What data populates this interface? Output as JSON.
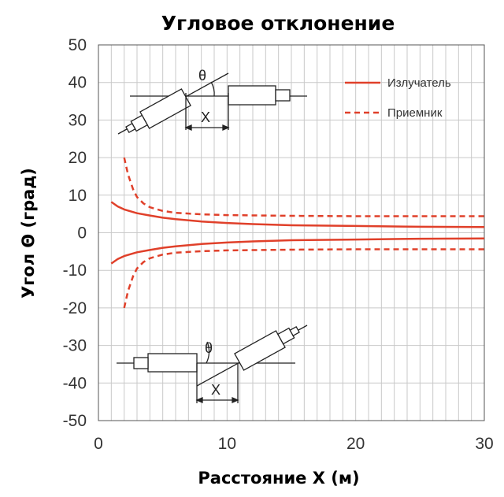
{
  "chart_data": {
    "type": "line",
    "title": "Угловое отклонение",
    "xlabel": "Расстояние X (м)",
    "ylabel": "Угол Θ (град)",
    "xlim": [
      0,
      30
    ],
    "ylim": [
      -50,
      50
    ],
    "xticks": [
      0,
      10,
      20,
      30
    ],
    "yticks": [
      50,
      40,
      30,
      20,
      10,
      0,
      -10,
      -20,
      -30,
      -40,
      -50
    ],
    "grid": true,
    "legend_position": "top-right",
    "colors": {
      "series": "#e0402a",
      "grid": "#c9c9c9",
      "text": "#333333"
    },
    "series": [
      {
        "name": "Излучатель",
        "style": "solid",
        "x": [
          1,
          1.5,
          2,
          3,
          4,
          5,
          6,
          8,
          10,
          12,
          15,
          20,
          25,
          30
        ],
        "y": [
          8.2,
          7.0,
          6.2,
          5.2,
          4.6,
          4.0,
          3.6,
          3.0,
          2.6,
          2.3,
          2.0,
          1.8,
          1.6,
          1.5
        ]
      },
      {
        "name": "",
        "legend_of": "Излучатель",
        "style": "solid",
        "x": [
          1,
          1.5,
          2,
          3,
          4,
          5,
          6,
          8,
          10,
          12,
          15,
          20,
          25,
          30
        ],
        "y": [
          -8.2,
          -7.0,
          -6.2,
          -5.2,
          -4.6,
          -4.0,
          -3.6,
          -3.0,
          -2.6,
          -2.3,
          -2.0,
          -1.8,
          -1.6,
          -1.5
        ]
      },
      {
        "name": "Приемник",
        "style": "dashed",
        "x": [
          2,
          2.3,
          2.7,
          3,
          3.5,
          4,
          5,
          6,
          8,
          10,
          15,
          20,
          25,
          30
        ],
        "y": [
          20,
          15.5,
          11.5,
          9.5,
          7.8,
          6.8,
          5.8,
          5.3,
          4.9,
          4.7,
          4.5,
          4.4,
          4.4,
          4.4
        ]
      },
      {
        "name": "",
        "legend_of": "Приемник",
        "style": "dashed",
        "x": [
          2,
          2.3,
          2.7,
          3,
          3.5,
          4,
          5,
          6,
          8,
          10,
          15,
          20,
          25,
          30
        ],
        "y": [
          -20,
          -15.5,
          -11.5,
          -9.5,
          -7.8,
          -6.8,
          -5.8,
          -5.3,
          -4.9,
          -4.7,
          -4.5,
          -4.4,
          -4.4,
          -4.4
        ]
      }
    ],
    "insets": {
      "top": {
        "angle_label": "θ",
        "distance_label": "X"
      },
      "bottom": {
        "angle_label": "θ",
        "distance_label": "X"
      }
    }
  }
}
